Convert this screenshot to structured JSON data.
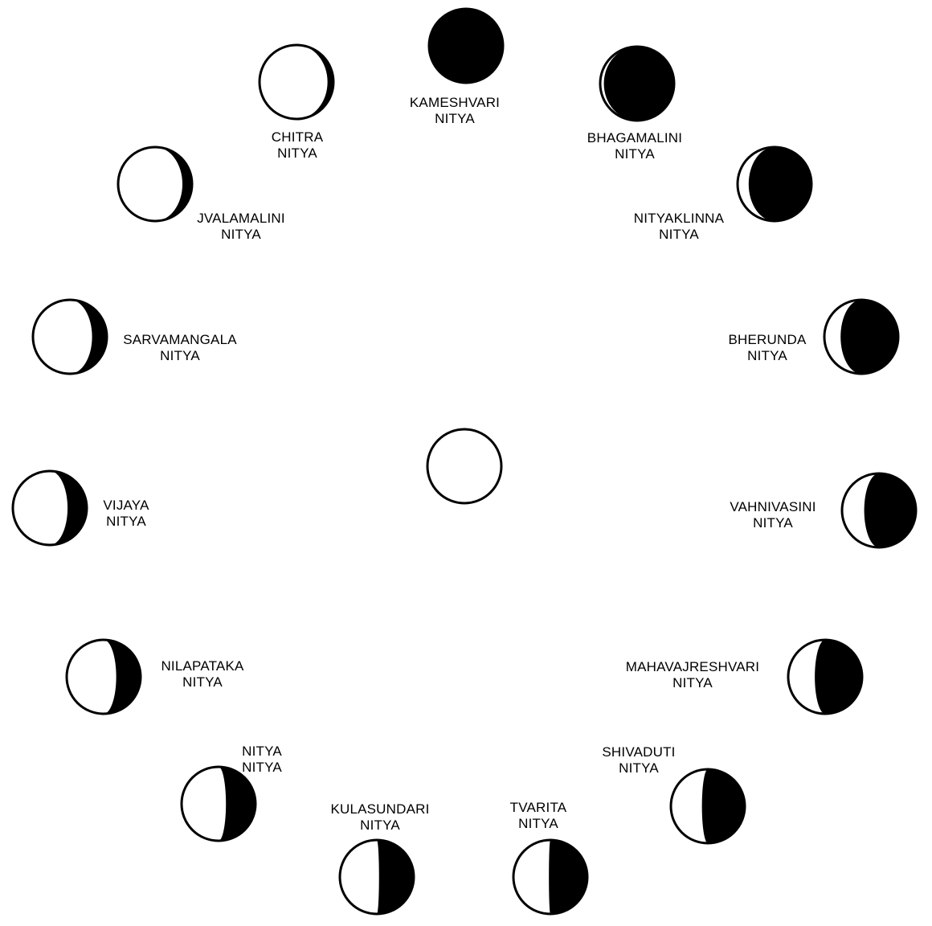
{
  "colors": {
    "ink": "#000000",
    "paper": "#ffffff"
  },
  "center": {
    "name": "center-moon",
    "dark_fraction": 0
  },
  "phases": [
    {
      "id": "kameshvari",
      "line1": "KAMESHVARI",
      "line2": "NITYA",
      "dark_fraction": 1.0
    },
    {
      "id": "bhagamalini",
      "line1": "BHAGAMALINI",
      "line2": "NITYA",
      "dark_fraction": 0.95
    },
    {
      "id": "nityaklinna",
      "line1": "NITYAKLINNA",
      "line2": "NITYA",
      "dark_fraction": 0.85
    },
    {
      "id": "bherunda",
      "line1": "BHERUNDA",
      "line2": "NITYA",
      "dark_fraction": 0.78
    },
    {
      "id": "vahnivasini",
      "line1": "VAHNIVASINI",
      "line2": "NITYA",
      "dark_fraction": 0.7
    },
    {
      "id": "mahavajreshvari",
      "line1": "MAHAVAJRESHVARI",
      "line2": "NITYA",
      "dark_fraction": 0.64
    },
    {
      "id": "shivaduti",
      "line1": "SHIVADUTI",
      "line2": "NITYA",
      "dark_fraction": 0.58
    },
    {
      "id": "tvarita",
      "line1": "TVARITA",
      "line2": "NITYA",
      "dark_fraction": 0.52
    },
    {
      "id": "kulasundari",
      "line1": "KULASUNDARI",
      "line2": "NITYA",
      "dark_fraction": 0.47
    },
    {
      "id": "nitya",
      "line1": "NITYA",
      "line2": "NITYA",
      "dark_fraction": 0.4
    },
    {
      "id": "nilapataka",
      "line1": "NILAPATAKA",
      "line2": "NITYA",
      "dark_fraction": 0.33
    },
    {
      "id": "vijaya",
      "line1": "VIJAYA",
      "line2": "NITYA",
      "dark_fraction": 0.26
    },
    {
      "id": "sarvamangala",
      "line1": "SARVAMANGALA",
      "line2": "NITYA",
      "dark_fraction": 0.2
    },
    {
      "id": "jvalamalini",
      "line1": "JVALAMALINI",
      "line2": "NITYA",
      "dark_fraction": 0.13
    },
    {
      "id": "chitra",
      "line1": "CHITRA",
      "line2": "NITYA",
      "dark_fraction": 0.08
    }
  ]
}
